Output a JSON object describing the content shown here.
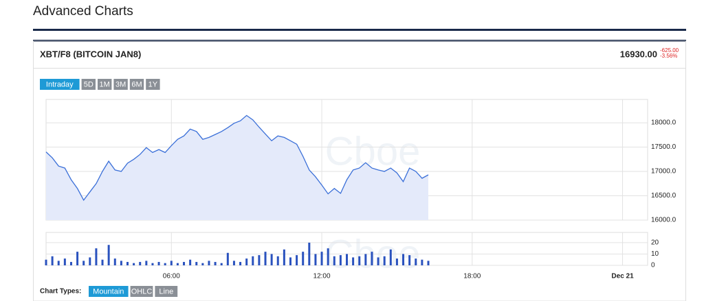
{
  "page": {
    "title": "Advanced Charts"
  },
  "header": {
    "symbol": "XBT/F8 (BITCOIN JAN8)",
    "price": "16930.00",
    "change": "-625.00",
    "change_pct": "-3.56%"
  },
  "range_buttons": [
    "Intraday",
    "5D",
    "1M",
    "3M",
    "6M",
    "1Y"
  ],
  "chart_types_label": "Chart Types:",
  "chart_types": [
    "Mountain",
    "OHLC",
    "Line"
  ],
  "watermark": "Cboe",
  "chart_data": [
    {
      "type": "area",
      "color": "#3a6fd8",
      "fill": "#e4eafa",
      "x": [
        1,
        1.25,
        1.5,
        1.75,
        2,
        2.25,
        2.5,
        2.75,
        3,
        3.25,
        3.5,
        3.75,
        4,
        4.25,
        4.5,
        4.75,
        5,
        5.25,
        5.5,
        5.75,
        6,
        6.25,
        6.5,
        6.75,
        7,
        7.25,
        7.5,
        7.75,
        8,
        8.25,
        8.5,
        8.75,
        9,
        9.25,
        9.5,
        9.75,
        10,
        10.25,
        10.5,
        10.75,
        11,
        11.25,
        11.5,
        11.75,
        12,
        12.25,
        12.5,
        12.75,
        13,
        13.25,
        13.5,
        13.75,
        14,
        14.25,
        14.5,
        14.75,
        15,
        15.25,
        15.5,
        15.75,
        16,
        16.25
      ],
      "values": [
        17400,
        17280,
        17110,
        17070,
        16830,
        16650,
        16410,
        16580,
        16750,
        17000,
        17210,
        17030,
        17000,
        17170,
        17250,
        17350,
        17490,
        17390,
        17450,
        17390,
        17530,
        17660,
        17730,
        17870,
        17820,
        17660,
        17700,
        17760,
        17820,
        17900,
        17990,
        18040,
        18150,
        18060,
        17910,
        17770,
        17630,
        17730,
        17700,
        17630,
        17560,
        17310,
        17030,
        16890,
        16720,
        16540,
        16650,
        16550,
        16830,
        17030,
        17070,
        17180,
        17070,
        17030,
        17000,
        17070,
        16970,
        16790,
        17070,
        17000,
        16860,
        16930
      ],
      "xlim": [
        1,
        25
      ],
      "xticks": [
        6,
        12,
        18,
        24
      ],
      "ylim": [
        16000,
        18480
      ],
      "yticks": [
        {
          "value": 16000,
          "label": "16000.0"
        },
        {
          "value": 16500,
          "label": "16500.0"
        },
        {
          "value": 17000,
          "label": "17000.0"
        },
        {
          "value": 17500,
          "label": "17500.0"
        },
        {
          "value": 18000,
          "label": "18000.0"
        }
      ],
      "grid": true
    },
    {
      "type": "bar",
      "color": "#2a52be",
      "x": [
        1,
        1.25,
        1.5,
        1.75,
        2,
        2.25,
        2.5,
        2.75,
        3,
        3.25,
        3.5,
        3.75,
        4,
        4.25,
        4.5,
        4.75,
        5,
        5.25,
        5.5,
        5.75,
        6,
        6.25,
        6.5,
        6.75,
        7,
        7.25,
        7.5,
        7.75,
        8,
        8.25,
        8.5,
        8.75,
        9,
        9.25,
        9.5,
        9.75,
        10,
        10.25,
        10.5,
        10.75,
        11,
        11.25,
        11.5,
        11.75,
        12,
        12.25,
        12.5,
        12.75,
        13,
        13.25,
        13.5,
        13.75,
        14,
        14.25,
        14.5,
        14.75,
        15,
        15.25,
        15.5,
        15.75,
        16,
        16.25
      ],
      "values": [
        5,
        8,
        4,
        6,
        3,
        12,
        4,
        7,
        15,
        5,
        18,
        6,
        4,
        3,
        2,
        3,
        4,
        2,
        3,
        2,
        4,
        2,
        3,
        5,
        3,
        2,
        4,
        3,
        2,
        11,
        4,
        3,
        6,
        8,
        9,
        12,
        10,
        8,
        14,
        7,
        9,
        12,
        20,
        10,
        12,
        15,
        8,
        9,
        10,
        7,
        8,
        10,
        12,
        7,
        8,
        14,
        6,
        10,
        9,
        6,
        5,
        4
      ],
      "xlim": [
        1,
        25
      ],
      "xticks": [
        {
          "value": 6,
          "label": "06:00"
        },
        {
          "value": 12,
          "label": "12:00"
        },
        {
          "value": 18,
          "label": "18:00"
        },
        {
          "value": 24,
          "label": "Dec 21"
        }
      ],
      "ylim": [
        0,
        29
      ],
      "yticks": [
        0,
        10,
        20
      ],
      "grid": true
    }
  ]
}
